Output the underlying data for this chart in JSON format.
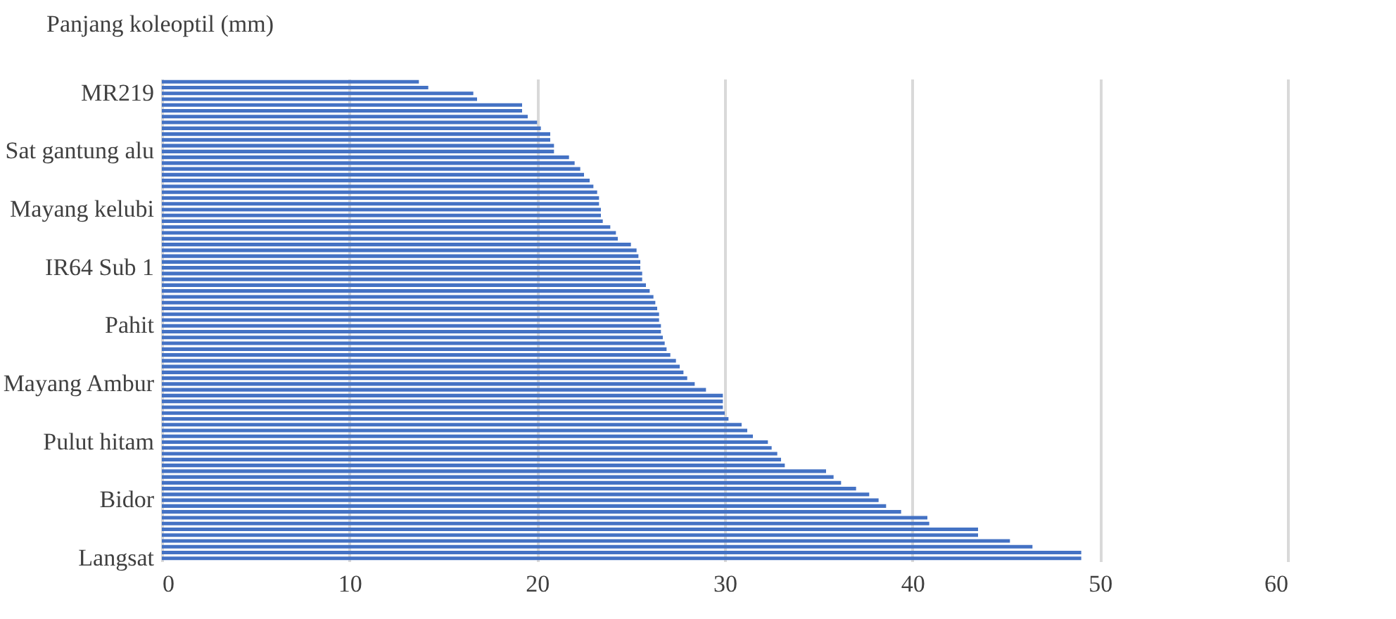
{
  "chart_data": {
    "type": "bar",
    "orientation": "horizontal",
    "title": "Panjang koleoptil (mm)",
    "categories": [
      null,
      null,
      "MR219",
      null,
      null,
      null,
      null,
      null,
      null,
      null,
      null,
      null,
      "Sat gantung alu",
      null,
      null,
      null,
      null,
      null,
      null,
      null,
      null,
      null,
      "Mayang kelubi",
      null,
      null,
      null,
      null,
      null,
      null,
      null,
      null,
      null,
      "IR64 Sub 1",
      null,
      null,
      null,
      null,
      null,
      null,
      null,
      null,
      null,
      "Pahit",
      null,
      null,
      null,
      null,
      null,
      null,
      null,
      null,
      null,
      "Mayang Ambur",
      null,
      null,
      null,
      null,
      null,
      null,
      null,
      null,
      null,
      "Pulut hitam",
      null,
      null,
      null,
      null,
      null,
      null,
      null,
      null,
      null,
      "Bidor",
      null,
      null,
      null,
      null,
      null,
      null,
      null,
      null,
      null,
      "Langsat"
    ],
    "series": [
      {
        "color": "#4472c4",
        "values": [
          13.7,
          14.2,
          16.6,
          16.8,
          19.2,
          19.2,
          19.5,
          20.0,
          20.2,
          20.7,
          20.7,
          20.9,
          20.9,
          21.7,
          22.0,
          22.3,
          22.5,
          22.8,
          23.0,
          23.2,
          23.3,
          23.3,
          23.4,
          23.4,
          23.5,
          23.9,
          24.2,
          24.3,
          25.0,
          25.3,
          25.4,
          25.5,
          25.5,
          25.6,
          25.6,
          25.8,
          26.0,
          26.2,
          26.3,
          26.4,
          26.5,
          26.5,
          26.6,
          26.6,
          26.7,
          26.8,
          26.9,
          27.1,
          27.4,
          27.6,
          27.8,
          28.0,
          28.4,
          29.0,
          29.9,
          29.9,
          29.9,
          30.0,
          30.2,
          30.9,
          31.2,
          31.5,
          32.3,
          32.5,
          32.8,
          33.0,
          33.2,
          35.4,
          35.8,
          36.2,
          37.0,
          37.7,
          38.2,
          38.6,
          39.4,
          40.8,
          40.9,
          43.5,
          43.5,
          45.2,
          46.4,
          49.0,
          49.0
        ]
      }
    ],
    "xlim": [
      0,
      60
    ],
    "xticks": [
      0,
      10,
      20,
      30,
      40,
      50,
      60
    ],
    "grid": "x",
    "legend": false
  }
}
